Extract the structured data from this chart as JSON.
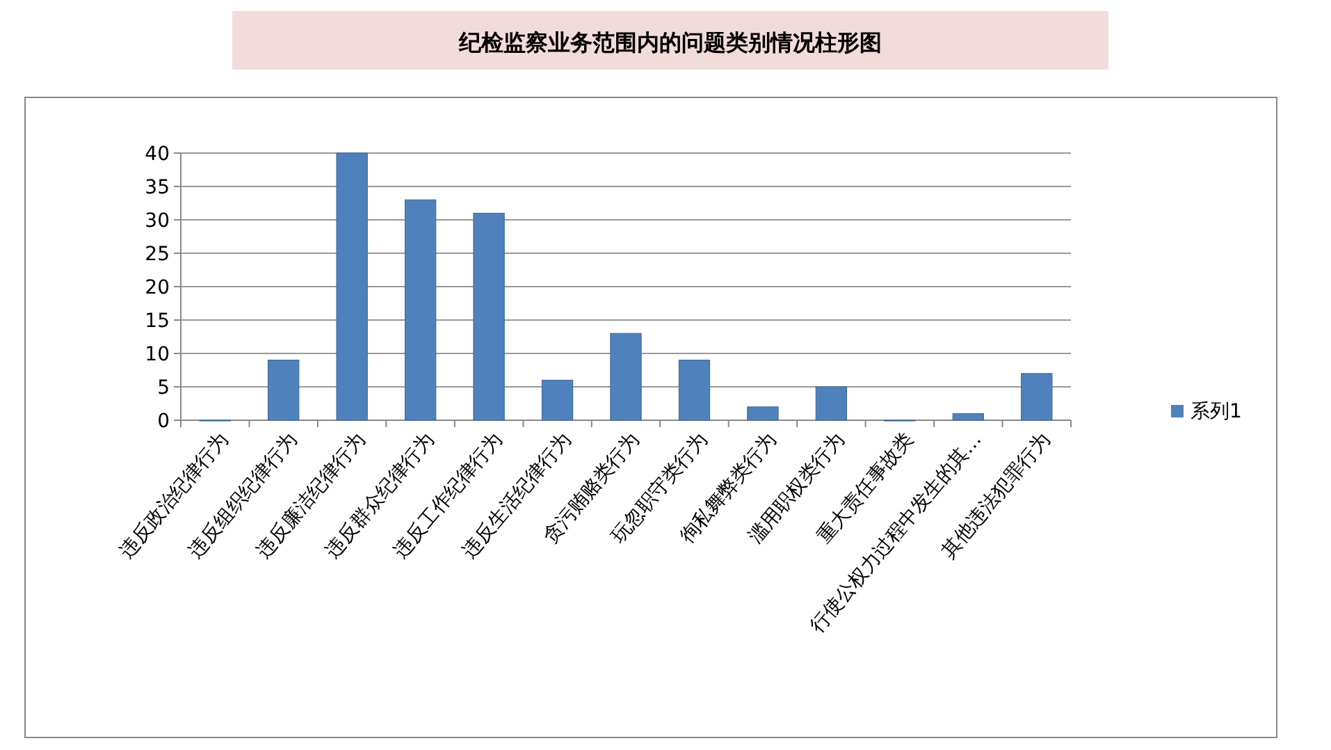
{
  "chart_data": {
    "type": "bar",
    "title": "纪检监察业务范围内的问题类别情况柱形图",
    "categories": [
      "违反政治纪律行为",
      "违反组织纪律行为",
      "违反廉洁纪律行为",
      "违反群众纪律行为",
      "违反工作纪律行为",
      "违反生活纪律行为",
      "贪污贿赂类行为",
      "玩忽职守类行为",
      "徇私舞弊类行为",
      "滥用职权类行为",
      "重大责任事故类",
      "行使公权力过程中发生的其…",
      "其他违法犯罪行为"
    ],
    "series": [
      {
        "name": "系列1",
        "color": "#4f81bd",
        "values": [
          0,
          9,
          40,
          33,
          31,
          6,
          13,
          9,
          2,
          5,
          0,
          1,
          7
        ]
      }
    ],
    "ylim": [
      0,
      40
    ],
    "yticks": [
      0,
      5,
      10,
      15,
      20,
      25,
      30,
      35,
      40
    ],
    "grid": "y",
    "legend": "right"
  }
}
